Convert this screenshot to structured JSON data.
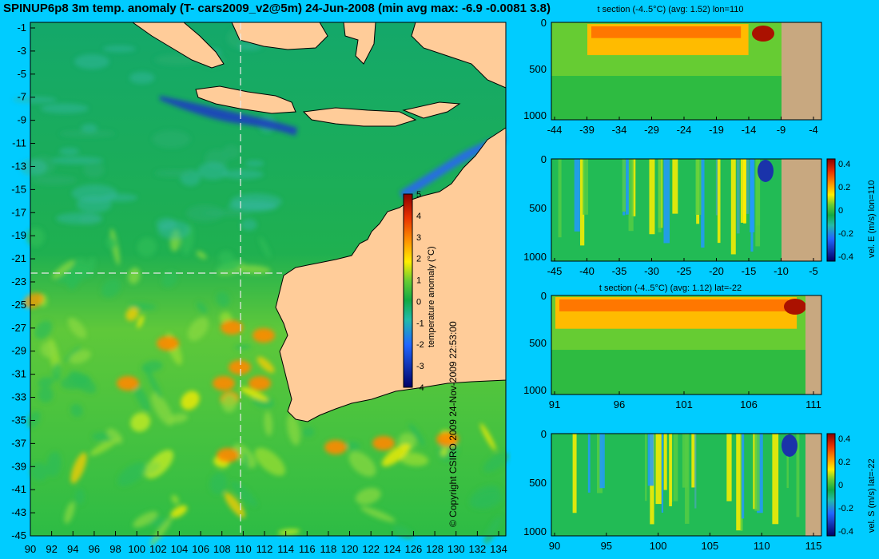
{
  "title": "SPINUP6p8 3m temp. anomaly (T- cars2009_v2@5m) 24-Jun-2008 (min avg max: -6.9 -0.0081 3.8)",
  "copyright": "© Copyright CSIRO 2009   24-Nov-2009 22:53:00",
  "colors": {
    "background": "#00ccff",
    "land": "#ffcc99",
    "section_land": "#c8a880"
  },
  "map": {
    "lat_labels": [
      "-1",
      "-3",
      "-5",
      "-7",
      "-9",
      "-11",
      "-13",
      "-15",
      "-17",
      "-19",
      "-21",
      "-23",
      "-25",
      "-27",
      "-29",
      "-31",
      "-33",
      "-35",
      "-37",
      "-39",
      "-41",
      "-43",
      "-45"
    ],
    "lon_labels": [
      "90",
      "92",
      "94",
      "96",
      "98",
      "100",
      "102",
      "104",
      "106",
      "108",
      "110",
      "112",
      "114",
      "116",
      "118",
      "120",
      "122",
      "124",
      "126",
      "128",
      "130",
      "132",
      "134"
    ],
    "section_lon": 110,
    "section_lat": -22,
    "colorbar": {
      "label": "temperature anomaly (°C)",
      "ticks": [
        "5",
        "4",
        "3",
        "2",
        "1",
        "0",
        "-1",
        "-2",
        "-3",
        "-4"
      ]
    }
  },
  "sections": [
    {
      "id": "t_lon",
      "title": "t section (-4..5°C) (avg: 1.52) lon=110",
      "x_ticks": [
        "-44",
        "-39",
        "-34",
        "-29",
        "-24",
        "-19",
        "-14",
        "-9",
        "-4"
      ],
      "y_ticks": [
        "0",
        "500",
        "1000"
      ],
      "colorbar": null
    },
    {
      "id": "u_lon",
      "title": "",
      "x_ticks": [
        "-45",
        "-40",
        "-35",
        "-30",
        "-25",
        "-20",
        "-15",
        "-10",
        "-5"
      ],
      "y_ticks": [
        "0",
        "500",
        "1000"
      ],
      "colorbar": {
        "label": "vel. E (m/s) lon=110",
        "ticks": [
          "0.4",
          "0.2",
          "0",
          "-0.2",
          "-0.4"
        ]
      }
    },
    {
      "id": "t_lat",
      "title": "t section (-4..5°C) (avg: 1.12) lat=-22",
      "x_ticks": [
        "91",
        "96",
        "101",
        "106",
        "111"
      ],
      "y_ticks": [
        "0",
        "500",
        "1000"
      ],
      "colorbar": null
    },
    {
      "id": "v_lat",
      "title": "",
      "x_ticks": [
        "90",
        "95",
        "100",
        "105",
        "110",
        "115"
      ],
      "y_ticks": [
        "0",
        "500",
        "1000"
      ],
      "colorbar": {
        "label": "vel. S (m/s) lat=-22",
        "ticks": [
          "0.4",
          "0.2",
          "0",
          "-0.2",
          "-0.4"
        ]
      }
    }
  ]
}
